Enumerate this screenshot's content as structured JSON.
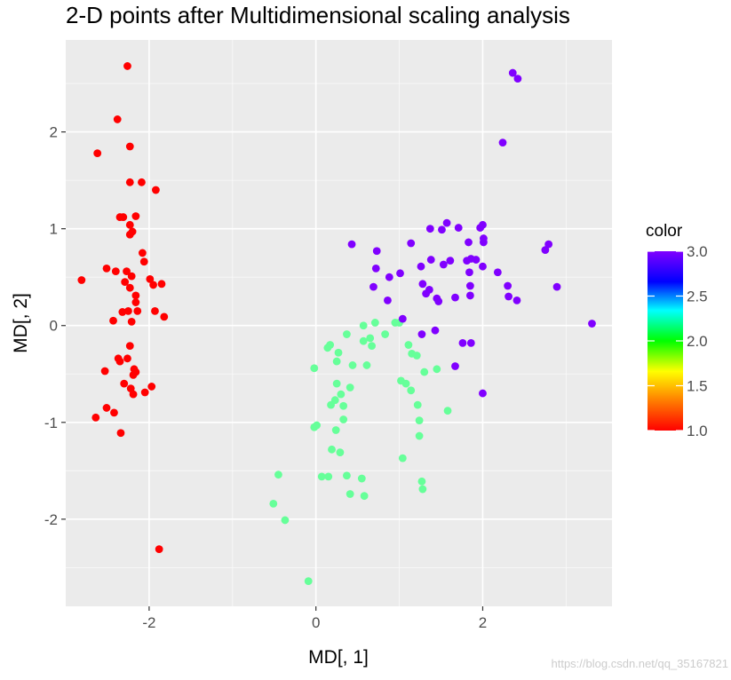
{
  "chart_data": {
    "type": "scatter",
    "title": "2-D points after Multidimensional scaling analysis",
    "xlabel": "MD[, 1]",
    "ylabel": "MD[, 2]",
    "xlim": [
      -3.0,
      3.55
    ],
    "ylim": [
      -2.9,
      2.95
    ],
    "x_ticks": [
      -2,
      0,
      2
    ],
    "x_tick_labels": [
      "-2",
      "0",
      "2"
    ],
    "y_ticks": [
      -2,
      -1,
      0,
      1,
      2
    ],
    "y_tick_labels": [
      "-2",
      "-1",
      "0",
      "1",
      "2"
    ],
    "grid": true,
    "legend": {
      "title": "color",
      "position": "right",
      "type": "colorbar",
      "range": [
        1.0,
        3.0
      ],
      "ticks": [
        "1.0",
        "1.5",
        "2.0",
        "2.5",
        "3.0"
      ],
      "palette": [
        "#ff0000",
        "#ff8000",
        "#ffff00",
        "#00ff00",
        "#00ffff",
        "#0000ff",
        "#8000ff"
      ]
    },
    "series": [
      {
        "value": 1.0,
        "color": "#ff0000",
        "points": [
          [
            -2.26,
            2.68
          ],
          [
            -2.38,
            2.13
          ],
          [
            -2.62,
            1.78
          ],
          [
            -2.23,
            1.85
          ],
          [
            -2.23,
            1.48
          ],
          [
            -2.09,
            1.48
          ],
          [
            -1.92,
            1.4
          ],
          [
            -2.35,
            1.12
          ],
          [
            -2.31,
            1.12
          ],
          [
            -2.16,
            1.13
          ],
          [
            -2.23,
            1.04
          ],
          [
            -2.2,
            0.97
          ],
          [
            -2.23,
            0.94
          ],
          [
            -2.08,
            0.75
          ],
          [
            -2.51,
            0.59
          ],
          [
            -2.4,
            0.56
          ],
          [
            -2.27,
            0.56
          ],
          [
            -2.21,
            0.51
          ],
          [
            -2.06,
            0.66
          ],
          [
            -1.99,
            0.48
          ],
          [
            -1.95,
            0.42
          ],
          [
            -1.85,
            0.43
          ],
          [
            -2.81,
            0.47
          ],
          [
            -2.29,
            0.45
          ],
          [
            -2.23,
            0.39
          ],
          [
            -2.16,
            0.31
          ],
          [
            -2.16,
            0.24
          ],
          [
            -2.32,
            0.14
          ],
          [
            -2.25,
            0.15
          ],
          [
            -2.14,
            0.15
          ],
          [
            -2.43,
            0.05
          ],
          [
            -2.21,
            0.04
          ],
          [
            -1.93,
            0.15
          ],
          [
            -1.82,
            0.09
          ],
          [
            -2.23,
            -0.21
          ],
          [
            -2.37,
            -0.34
          ],
          [
            -2.35,
            -0.37
          ],
          [
            -2.26,
            -0.34
          ],
          [
            -2.53,
            -0.47
          ],
          [
            -2.18,
            -0.45
          ],
          [
            -2.16,
            -0.48
          ],
          [
            -2.19,
            -0.51
          ],
          [
            -2.3,
            -0.6
          ],
          [
            -2.22,
            -0.65
          ],
          [
            -2.19,
            -0.71
          ],
          [
            -2.05,
            -0.69
          ],
          [
            -1.97,
            -0.63
          ],
          [
            -2.51,
            -0.85
          ],
          [
            -2.64,
            -0.95
          ],
          [
            -2.42,
            -0.9
          ],
          [
            -2.34,
            -1.11
          ],
          [
            -1.88,
            -2.31
          ]
        ]
      },
      {
        "value": 2.0,
        "color": "#66ff99",
        "points": [
          [
            0.71,
            0.03
          ],
          [
            0.57,
            0.0
          ],
          [
            0.95,
            0.03
          ],
          [
            1.0,
            0.03
          ],
          [
            0.37,
            -0.09
          ],
          [
            0.57,
            -0.16
          ],
          [
            0.65,
            -0.13
          ],
          [
            0.83,
            -0.09
          ],
          [
            0.17,
            -0.2
          ],
          [
            0.14,
            -0.23
          ],
          [
            0.27,
            -0.28
          ],
          [
            0.67,
            -0.21
          ],
          [
            1.11,
            -0.2
          ],
          [
            1.15,
            -0.29
          ],
          [
            1.21,
            -0.31
          ],
          [
            0.25,
            -0.37
          ],
          [
            0.44,
            -0.41
          ],
          [
            0.61,
            -0.41
          ],
          [
            -0.02,
            -0.44
          ],
          [
            1.3,
            -0.48
          ],
          [
            1.45,
            -0.45
          ],
          [
            0.25,
            -0.6
          ],
          [
            0.41,
            -0.64
          ],
          [
            1.02,
            -0.57
          ],
          [
            1.08,
            -0.6
          ],
          [
            1.14,
            -0.67
          ],
          [
            0.3,
            -0.71
          ],
          [
            0.23,
            -0.77
          ],
          [
            0.18,
            -0.82
          ],
          [
            0.33,
            -0.83
          ],
          [
            1.22,
            -0.82
          ],
          [
            0.33,
            -0.97
          ],
          [
            1.24,
            -0.98
          ],
          [
            1.58,
            -0.88
          ],
          [
            0.01,
            -1.03
          ],
          [
            -0.02,
            -1.05
          ],
          [
            0.24,
            -1.08
          ],
          [
            1.24,
            -1.14
          ],
          [
            0.19,
            -1.28
          ],
          [
            0.29,
            -1.31
          ],
          [
            1.04,
            -1.37
          ],
          [
            -0.45,
            -1.54
          ],
          [
            0.07,
            -1.56
          ],
          [
            0.15,
            -1.56
          ],
          [
            0.37,
            -1.55
          ],
          [
            0.55,
            -1.58
          ],
          [
            1.27,
            -1.61
          ],
          [
            1.28,
            -1.69
          ],
          [
            -0.51,
            -1.84
          ],
          [
            0.41,
            -1.74
          ],
          [
            0.58,
            -1.76
          ],
          [
            -0.37,
            -2.01
          ],
          [
            -0.09,
            -2.64
          ]
        ]
      },
      {
        "value": 3.0,
        "color": "#8000ff",
        "points": [
          [
            2.36,
            2.61
          ],
          [
            2.42,
            2.55
          ],
          [
            2.24,
            1.89
          ],
          [
            1.57,
            1.06
          ],
          [
            1.71,
            1.01
          ],
          [
            1.97,
            1.01
          ],
          [
            2.0,
            1.04
          ],
          [
            1.37,
            1.0
          ],
          [
            1.51,
            0.99
          ],
          [
            1.83,
            0.86
          ],
          [
            2.01,
            0.9
          ],
          [
            2.01,
            0.86
          ],
          [
            2.79,
            0.84
          ],
          [
            2.75,
            0.78
          ],
          [
            1.14,
            0.85
          ],
          [
            0.43,
            0.84
          ],
          [
            0.73,
            0.77
          ],
          [
            1.61,
            0.67
          ],
          [
            1.81,
            0.67
          ],
          [
            1.92,
            0.68
          ],
          [
            1.38,
            0.68
          ],
          [
            1.86,
            0.69
          ],
          [
            1.53,
            0.63
          ],
          [
            1.26,
            0.61
          ],
          [
            0.72,
            0.59
          ],
          [
            1.84,
            0.55
          ],
          [
            2.0,
            0.61
          ],
          [
            2.18,
            0.55
          ],
          [
            1.01,
            0.54
          ],
          [
            0.88,
            0.5
          ],
          [
            1.28,
            0.43
          ],
          [
            1.85,
            0.41
          ],
          [
            2.3,
            0.41
          ],
          [
            2.89,
            0.4
          ],
          [
            0.69,
            0.4
          ],
          [
            1.36,
            0.37
          ],
          [
            1.45,
            0.28
          ],
          [
            1.47,
            0.25
          ],
          [
            1.67,
            0.29
          ],
          [
            1.85,
            0.31
          ],
          [
            2.31,
            0.3
          ],
          [
            2.41,
            0.26
          ],
          [
            1.32,
            0.33
          ],
          [
            0.86,
            0.26
          ],
          [
            1.04,
            0.07
          ],
          [
            3.31,
            0.02
          ],
          [
            1.43,
            -0.05
          ],
          [
            1.27,
            -0.09
          ],
          [
            1.76,
            -0.18
          ],
          [
            1.86,
            -0.18
          ],
          [
            1.67,
            -0.42
          ],
          [
            2.0,
            -0.7
          ]
        ]
      }
    ]
  },
  "watermark": "https://blog.csdn.net/qq_35167821"
}
